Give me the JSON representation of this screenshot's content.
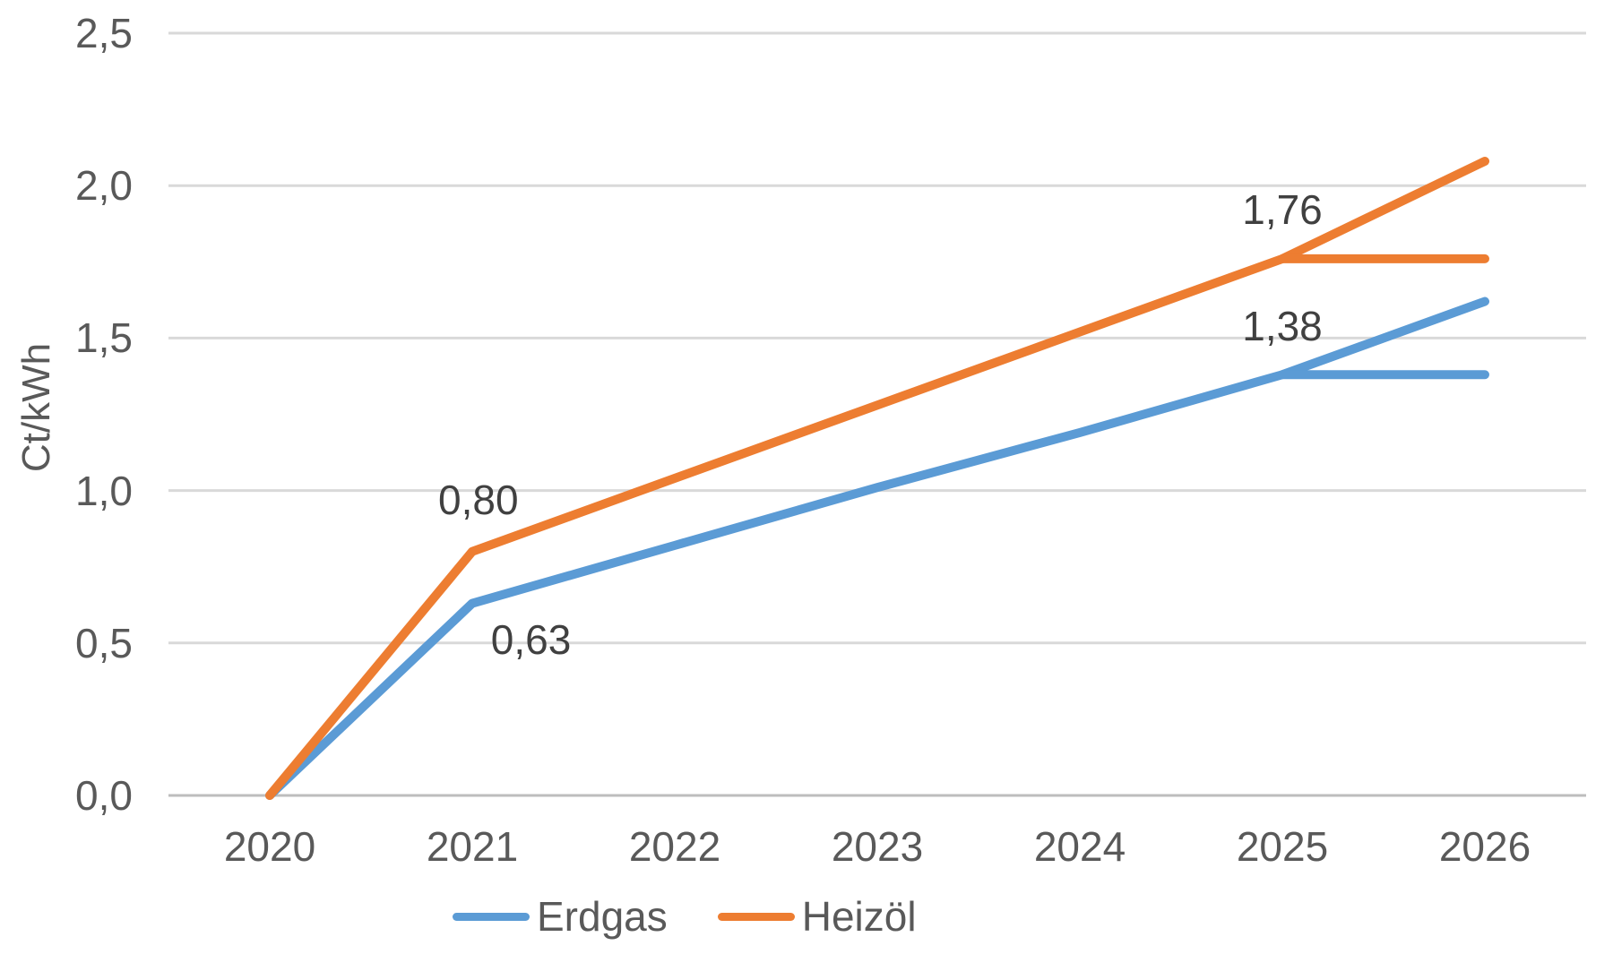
{
  "chart_data": {
    "type": "line",
    "title": "",
    "ylabel": "Ct/kWh",
    "xlabel": "",
    "categories": [
      2020,
      2021,
      2022,
      2023,
      2024,
      2025,
      2026
    ],
    "x_tick_labels": [
      "2020",
      "2021",
      "2022",
      "2023",
      "2024",
      "2025",
      "2026"
    ],
    "y_ticks": [
      {
        "value": 0.0,
        "label": "0,0"
      },
      {
        "value": 0.5,
        "label": "0,5"
      },
      {
        "value": 1.0,
        "label": "1,0"
      },
      {
        "value": 1.5,
        "label": "1,5"
      },
      {
        "value": 2.0,
        "label": "2,0"
      },
      {
        "value": 2.5,
        "label": "2,5"
      }
    ],
    "ylim": [
      0,
      2.5
    ],
    "grid": true,
    "legend_position": "bottom",
    "colors": {
      "erdgas": "#5B9BD5",
      "heizoel": "#ED7D31",
      "gridline": "#D9D9D9",
      "axis_line": "#BDBDBD",
      "tick_text": "#595959",
      "data_label_text": "#404040"
    },
    "series": [
      {
        "id": "erdgas",
        "name": "Erdgas",
        "color": "#5B9BD5",
        "x": [
          2020,
          2021,
          2022,
          2023,
          2024,
          2025,
          2026
        ],
        "values": [
          0.0,
          0.63,
          0.82,
          1.01,
          1.19,
          1.38,
          1.62
        ],
        "show_in_legend": true
      },
      {
        "id": "erdgas-flat",
        "name": "Erdgas",
        "color": "#5B9BD5",
        "x": [
          2025,
          2026
        ],
        "values": [
          1.38,
          1.38
        ],
        "show_in_legend": false
      },
      {
        "id": "heizoel",
        "name": "Heizöl",
        "color": "#ED7D31",
        "x": [
          2020,
          2021,
          2022,
          2023,
          2024,
          2025,
          2026
        ],
        "values": [
          0.0,
          0.8,
          1.04,
          1.28,
          1.52,
          1.76,
          2.08
        ],
        "show_in_legend": true
      },
      {
        "id": "heizoel-flat",
        "name": "Heizöl",
        "color": "#ED7D31",
        "x": [
          2025,
          2026
        ],
        "values": [
          1.76,
          1.76
        ],
        "show_in_legend": false
      }
    ],
    "data_labels": [
      {
        "text": "0,80",
        "x": 2021.03,
        "y": 0.97
      },
      {
        "text": "0,63",
        "x": 2021.29,
        "y": 0.51
      },
      {
        "text": "1,76",
        "x": 2025.0,
        "y": 1.92
      },
      {
        "text": "1,38",
        "x": 2025.0,
        "y": 1.54
      }
    ],
    "legend": [
      "Erdgas",
      "Heizöl"
    ]
  }
}
